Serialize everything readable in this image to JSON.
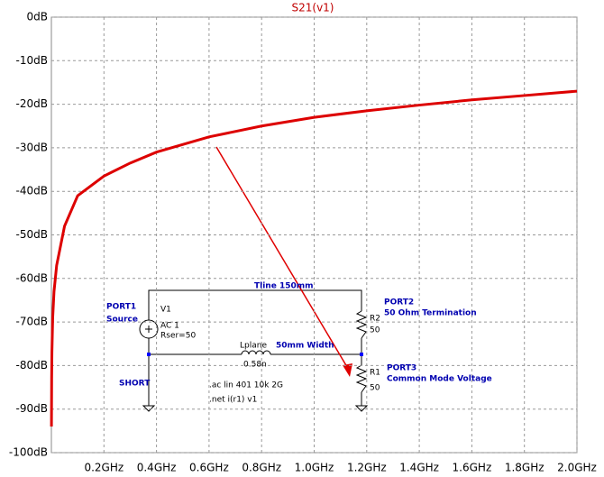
{
  "chart_data": {
    "type": "line",
    "title": "S21(v1)",
    "xlim": [
      0,
      2
    ],
    "ylim": [
      -100,
      0
    ],
    "xticks": [
      {
        "value": 0.2,
        "label": "0.2GHz"
      },
      {
        "value": 0.4,
        "label": "0.4GHz"
      },
      {
        "value": 0.6,
        "label": "0.6GHz"
      },
      {
        "value": 0.8,
        "label": "0.8GHz"
      },
      {
        "value": 1.0,
        "label": "1.0GHz"
      },
      {
        "value": 1.2,
        "label": "1.2GHz"
      },
      {
        "value": 1.4,
        "label": "1.4GHz"
      },
      {
        "value": 1.6,
        "label": "1.6GHz"
      },
      {
        "value": 1.8,
        "label": "1.8GHz"
      },
      {
        "value": 2.0,
        "label": "2.0GHz"
      }
    ],
    "yticks": [
      {
        "value": 0,
        "label": "0dB"
      },
      {
        "value": -10,
        "label": "-10dB"
      },
      {
        "value": -20,
        "label": "-20dB"
      },
      {
        "value": -30,
        "label": "-30dB"
      },
      {
        "value": -40,
        "label": "-40dB"
      },
      {
        "value": -50,
        "label": "-50dB"
      },
      {
        "value": -60,
        "label": "-60dB"
      },
      {
        "value": -70,
        "label": "-70dB"
      },
      {
        "value": -80,
        "label": "-80dB"
      },
      {
        "value": -90,
        "label": "-90dB"
      },
      {
        "value": -100,
        "label": "-100dB"
      }
    ],
    "grid": true,
    "x": [
      0.0003,
      0.001,
      0.002,
      0.005,
      0.01,
      0.02,
      0.05,
      0.1,
      0.2,
      0.3,
      0.4,
      0.6,
      0.8,
      1.0,
      1.2,
      1.4,
      1.6,
      1.8,
      2.0
    ],
    "series": [
      {
        "name": "S21(v1)",
        "color": "#dd0000",
        "values": [
          -94,
          -83,
          -77,
          -69,
          -63,
          -57,
          -48,
          -41,
          -36.5,
          -33.5,
          -31,
          -27.5,
          -25,
          -23,
          -21.5,
          -20.2,
          -19,
          -18,
          -17
        ]
      }
    ],
    "annotations": [
      "PORT1",
      "Source",
      "V1",
      "AC 1",
      "Rser=50",
      "Tline 150mm",
      "PORT2",
      "50 Ohm Termination",
      "R2",
      "50",
      "Lplane",
      "0.58n",
      "50mm Width",
      "PORT3",
      "Common Mode Voltage",
      "R1",
      "50",
      "SHORT",
      ".ac lin 401 10k 2G",
      ".net i(r1) v1"
    ]
  }
}
